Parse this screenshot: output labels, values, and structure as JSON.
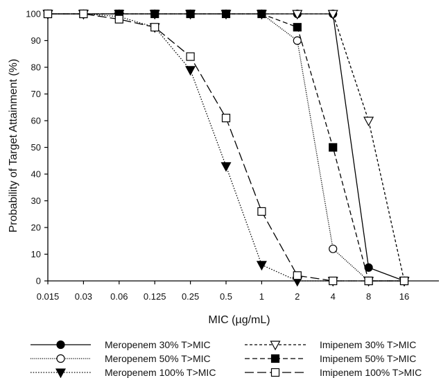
{
  "chart_data": {
    "type": "line",
    "title": "",
    "xlabel": "MIC (µg/mL)",
    "ylabel": "Probability of Target Attainment (%)",
    "categories": [
      "0.015",
      "0.03",
      "0.06",
      "0.125",
      "0.25",
      "0.5",
      "1",
      "2",
      "4",
      "8",
      "16"
    ],
    "x_scale": "log2 (categorical, evenly spaced)",
    "ylim": [
      0,
      100
    ],
    "yticks": [
      "0",
      "10",
      "20",
      "30",
      "40",
      "50",
      "60",
      "70",
      "80",
      "90",
      "100"
    ],
    "grid": false,
    "legend_position": "bottom",
    "series": [
      {
        "name": "Meropenem 30% T>MIC",
        "marker": "circle-filled",
        "line": "solid",
        "values": [
          100,
          100,
          100,
          100,
          100,
          100,
          100,
          100,
          100,
          5,
          0
        ]
      },
      {
        "name": "Meropenem 50% T>MIC",
        "marker": "circle-open",
        "line": "dotted-fine",
        "values": [
          100,
          100,
          100,
          100,
          100,
          100,
          100,
          90,
          12,
          0,
          0
        ]
      },
      {
        "name": "Meropenem 100% T>MIC",
        "marker": "triangle-down-filled",
        "line": "dotted",
        "values": [
          100,
          100,
          99,
          95,
          79,
          43,
          6,
          0,
          0,
          0,
          0
        ]
      },
      {
        "name": "Imipenem 30% T>MIC",
        "marker": "triangle-down-open",
        "line": "short-dash",
        "values": [
          100,
          100,
          100,
          100,
          100,
          100,
          100,
          100,
          100,
          60,
          0
        ]
      },
      {
        "name": "Imipenem 50% T>MIC",
        "marker": "square-filled",
        "line": "dashed",
        "values": [
          100,
          100,
          100,
          100,
          100,
          100,
          100,
          95,
          50,
          0,
          0
        ]
      },
      {
        "name": "Imipenem 100% T>MIC",
        "marker": "square-open",
        "line": "long-dash",
        "values": [
          100,
          100,
          98,
          95,
          84,
          61,
          26,
          2,
          0,
          0,
          0
        ]
      }
    ]
  }
}
